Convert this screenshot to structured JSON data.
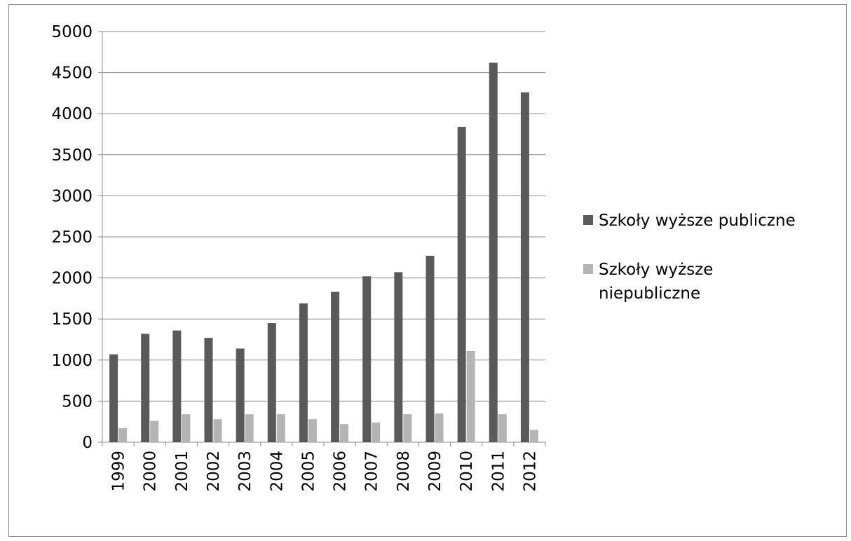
{
  "chart_data": {
    "type": "bar",
    "categories": [
      "1999",
      "2000",
      "2001",
      "2002",
      "2003",
      "2004",
      "2005",
      "2006",
      "2007",
      "2008",
      "2009",
      "2010",
      "2011",
      "2012"
    ],
    "series": [
      {
        "name": "Szkoły wyższe  publiczne",
        "color": "#5a5a5a",
        "values": [
          1070,
          1320,
          1360,
          1270,
          1140,
          1450,
          1690,
          1830,
          2020,
          2070,
          2270,
          3840,
          4620,
          4260
        ]
      },
      {
        "name": "Szkoły wyższe niepubliczne",
        "color": "#b4b4b4",
        "values": [
          170,
          260,
          340,
          280,
          340,
          340,
          280,
          220,
          240,
          340,
          350,
          1110,
          340,
          150
        ]
      }
    ],
    "yticks": [
      "0",
      "500",
      "1000",
      "1500",
      "2000",
      "2500",
      "3000",
      "3500",
      "4000",
      "4500",
      "5000"
    ],
    "ylim": [
      0,
      5000
    ],
    "grid": true,
    "legend_position": "right"
  }
}
